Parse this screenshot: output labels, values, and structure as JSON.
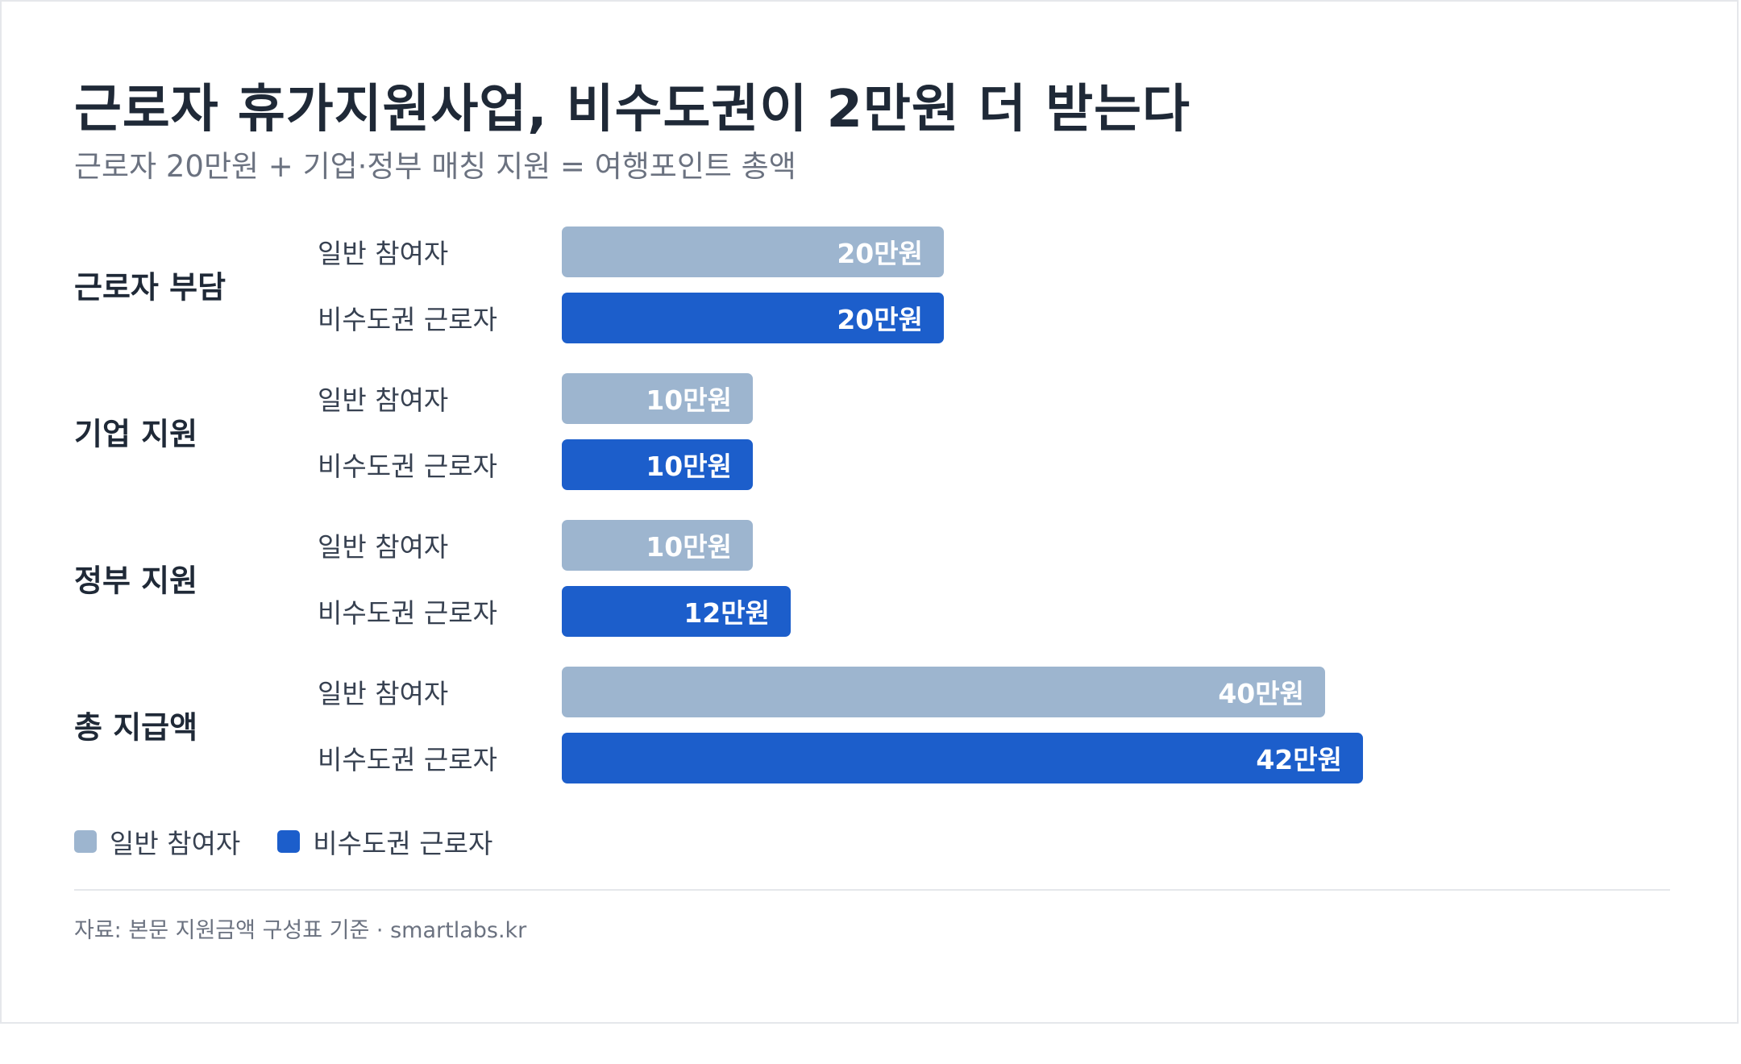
{
  "title": "근로자 휴가지원사업, 비수도권이 2만원 더 받는다",
  "subtitle": "근로자 20만원 + 기업·정부 매칭 지원 = 여행포인트 총액",
  "source": "자료: 본문 지원금액 구성표 기준 · smartlabs.kr",
  "colors": {
    "general": "#9db5cf",
    "nonCapital": "#1c5ecb"
  },
  "chart_data": {
    "type": "bar",
    "orientation": "horizontal",
    "categories": [
      "근로자 부담",
      "기업 지원",
      "정부 지원",
      "총 지급액"
    ],
    "series": [
      {
        "name": "일반 참여자",
        "values": [
          20,
          10,
          10,
          40
        ],
        "labels": [
          "20만원",
          "10만원",
          "10만원",
          "40만원"
        ]
      },
      {
        "name": "비수도권 근로자",
        "values": [
          20,
          10,
          12,
          42
        ],
        "labels": [
          "20만원",
          "10만원",
          "12만원",
          "42만원"
        ]
      }
    ],
    "unit": "만원",
    "xlim": [
      0,
      46
    ],
    "grid": false,
    "legend": "bottom-left"
  }
}
